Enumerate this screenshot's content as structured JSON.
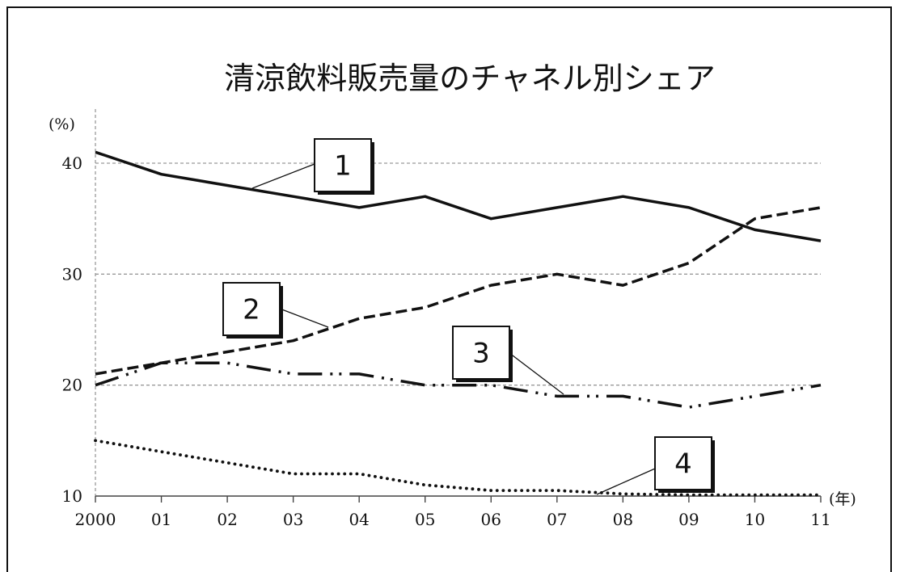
{
  "chart_data": {
    "type": "line",
    "title": "清涼飲料販売量のチャネル別シェア",
    "y_unit": "(%)",
    "x_unit": "(年)",
    "categories": [
      "2000",
      "01",
      "02",
      "03",
      "04",
      "05",
      "06",
      "07",
      "08",
      "09",
      "10",
      "11"
    ],
    "ylim": [
      10,
      40
    ],
    "yticks": [
      10,
      20,
      30,
      40
    ],
    "grid": true,
    "series": [
      {
        "name": "1",
        "style": "solid",
        "values": [
          41,
          39,
          38,
          37,
          36,
          37,
          35,
          36,
          37,
          36,
          34,
          33
        ]
      },
      {
        "name": "2",
        "style": "dashed",
        "values": [
          21,
          22,
          23,
          24,
          26,
          27,
          29,
          30,
          29,
          31,
          35,
          36
        ]
      },
      {
        "name": "3",
        "style": "dash-dot-dot",
        "values": [
          20,
          22,
          22,
          21,
          21,
          20,
          20,
          19,
          19,
          18,
          19,
          20
        ]
      },
      {
        "name": "4",
        "style": "dotted",
        "values": [
          15,
          14,
          13,
          12,
          12,
          11,
          10.5,
          10.5,
          10.2,
          10.1,
          10.1,
          10.1
        ]
      }
    ]
  }
}
